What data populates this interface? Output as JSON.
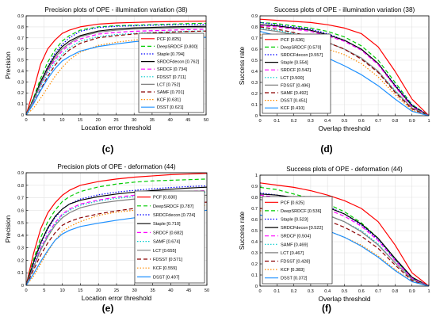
{
  "figure": {
    "panel_labels": [
      "(c)",
      "(d)",
      "(e)",
      "(f)"
    ]
  },
  "chart_data": [
    {
      "type": "line",
      "title": "Precision plots of OPE - illumination variation (38)",
      "xlabel": "Location error threshold",
      "ylabel": "Precision",
      "xlim": [
        0,
        50
      ],
      "ylim": [
        0,
        0.9
      ],
      "xticks": [
        0,
        5,
        10,
        15,
        20,
        25,
        30,
        35,
        40,
        45,
        50
      ],
      "yticks": [
        0,
        0.1,
        0.2,
        0.3,
        0.4,
        0.5,
        0.6,
        0.7,
        0.8,
        0.9
      ],
      "grid": true,
      "legend_position": "bottom-right",
      "x": [
        0,
        2,
        4,
        6,
        8,
        10,
        12,
        15,
        20,
        25,
        30,
        35,
        40,
        45,
        50
      ],
      "series": [
        {
          "name": "PCF [0.825]",
          "color": "#ff0000",
          "dash": "solid",
          "values": [
            0.0,
            0.22,
            0.46,
            0.6,
            0.68,
            0.74,
            0.77,
            0.8,
            0.825,
            0.835,
            0.84,
            0.845,
            0.848,
            0.85,
            0.852
          ]
        },
        {
          "name": "DeepSRDCF [0.800]",
          "color": "#00cc00",
          "dash": "dashed",
          "values": [
            0.0,
            0.15,
            0.33,
            0.48,
            0.59,
            0.67,
            0.72,
            0.77,
            0.8,
            0.81,
            0.815,
            0.82,
            0.825,
            0.83,
            0.832
          ]
        },
        {
          "name": "Staple [0.794]",
          "color": "#0000ff",
          "dash": "dotted",
          "values": [
            0.0,
            0.14,
            0.3,
            0.44,
            0.56,
            0.64,
            0.7,
            0.76,
            0.794,
            0.805,
            0.81,
            0.815,
            0.818,
            0.82,
            0.822
          ]
        },
        {
          "name": "SRDCFdecon [0.762]",
          "color": "#000000",
          "dash": "solid",
          "values": [
            0.0,
            0.14,
            0.3,
            0.43,
            0.54,
            0.62,
            0.67,
            0.72,
            0.762,
            0.78,
            0.79,
            0.795,
            0.8,
            0.803,
            0.805
          ]
        },
        {
          "name": "SRDCF [0.734]",
          "color": "#ff00ff",
          "dash": "dashed",
          "values": [
            0.0,
            0.12,
            0.27,
            0.4,
            0.5,
            0.58,
            0.64,
            0.69,
            0.734,
            0.75,
            0.76,
            0.765,
            0.77,
            0.775,
            0.778
          ]
        },
        {
          "name": "FDSST [0.711]",
          "color": "#00cccc",
          "dash": "dotted",
          "values": [
            0.0,
            0.12,
            0.26,
            0.38,
            0.48,
            0.55,
            0.61,
            0.67,
            0.711,
            0.73,
            0.74,
            0.748,
            0.755,
            0.76,
            0.763
          ]
        },
        {
          "name": "LCT [0.752]",
          "color": "#808080",
          "dash": "solid",
          "values": [
            0.0,
            0.13,
            0.28,
            0.41,
            0.52,
            0.6,
            0.65,
            0.71,
            0.752,
            0.77,
            0.78,
            0.785,
            0.79,
            0.793,
            0.795
          ]
        },
        {
          "name": "SAMF [0.701]",
          "color": "#8b0000",
          "dash": "dashed",
          "values": [
            0.0,
            0.1,
            0.23,
            0.35,
            0.45,
            0.53,
            0.59,
            0.65,
            0.701,
            0.72,
            0.735,
            0.745,
            0.752,
            0.758,
            0.762
          ]
        },
        {
          "name": "KCF [0.631]",
          "color": "#ff8c00",
          "dash": "dotted",
          "values": [
            0.0,
            0.06,
            0.15,
            0.25,
            0.35,
            0.43,
            0.5,
            0.57,
            0.631,
            0.66,
            0.68,
            0.695,
            0.705,
            0.712,
            0.718
          ]
        },
        {
          "name": "DSST [0.621]",
          "color": "#1e90ff",
          "dash": "solid",
          "values": [
            0.0,
            0.1,
            0.22,
            0.33,
            0.42,
            0.49,
            0.53,
            0.58,
            0.621,
            0.645,
            0.665,
            0.68,
            0.69,
            0.7,
            0.705
          ]
        }
      ]
    },
    {
      "type": "line",
      "title": "Success plots of OPE - illumination variation (38)",
      "xlabel": "Overlap threshold",
      "ylabel": "Success rate",
      "xlim": [
        0,
        1
      ],
      "ylim": [
        0,
        0.9
      ],
      "xticks": [
        0,
        0.1,
        0.2,
        0.3,
        0.4,
        0.5,
        0.6,
        0.7,
        0.8,
        0.9,
        1
      ],
      "yticks": [
        0,
        0.1,
        0.2,
        0.3,
        0.4,
        0.5,
        0.6,
        0.7,
        0.8,
        0.9
      ],
      "grid": true,
      "legend_position": "bottom-left",
      "x": [
        0,
        0.1,
        0.2,
        0.3,
        0.4,
        0.5,
        0.6,
        0.7,
        0.8,
        0.9,
        1.0
      ],
      "series": [
        {
          "name": "PCF [0.636]",
          "color": "#ff0000",
          "dash": "solid",
          "values": [
            0.87,
            0.86,
            0.85,
            0.84,
            0.82,
            0.79,
            0.74,
            0.62,
            0.4,
            0.15,
            0.0
          ]
        },
        {
          "name": "DeepSRDCF [0.570]",
          "color": "#00cc00",
          "dash": "dashed",
          "values": [
            0.84,
            0.83,
            0.81,
            0.79,
            0.76,
            0.71,
            0.63,
            0.5,
            0.3,
            0.1,
            0.0
          ]
        },
        {
          "name": "SRDCFdecon [0.557]",
          "color": "#0000ff",
          "dash": "dotted",
          "values": [
            0.84,
            0.82,
            0.8,
            0.78,
            0.74,
            0.68,
            0.6,
            0.47,
            0.28,
            0.1,
            0.0
          ]
        },
        {
          "name": "Staple [0.554]",
          "color": "#000000",
          "dash": "solid",
          "values": [
            0.82,
            0.81,
            0.79,
            0.77,
            0.73,
            0.68,
            0.6,
            0.47,
            0.27,
            0.09,
            0.0
          ]
        },
        {
          "name": "SRDCF [0.542]",
          "color": "#ff00ff",
          "dash": "dashed",
          "values": [
            0.81,
            0.8,
            0.78,
            0.76,
            0.72,
            0.67,
            0.59,
            0.46,
            0.26,
            0.08,
            0.0
          ]
        },
        {
          "name": "LCT [0.500]",
          "color": "#00cccc",
          "dash": "dotted",
          "values": [
            0.79,
            0.77,
            0.74,
            0.7,
            0.66,
            0.6,
            0.52,
            0.4,
            0.23,
            0.07,
            0.0
          ]
        },
        {
          "name": "FDSST [0.496]",
          "color": "#808080",
          "dash": "solid",
          "values": [
            0.78,
            0.76,
            0.73,
            0.7,
            0.66,
            0.6,
            0.52,
            0.4,
            0.22,
            0.07,
            0.0
          ]
        },
        {
          "name": "SAMF [0.492]",
          "color": "#8b0000",
          "dash": "dashed",
          "values": [
            0.8,
            0.78,
            0.75,
            0.71,
            0.66,
            0.6,
            0.51,
            0.39,
            0.21,
            0.06,
            0.0
          ]
        },
        {
          "name": "DSST [0.451]",
          "color": "#ff8c00",
          "dash": "dotted",
          "values": [
            0.73,
            0.71,
            0.68,
            0.64,
            0.6,
            0.55,
            0.47,
            0.35,
            0.19,
            0.05,
            0.0
          ]
        },
        {
          "name": "KCF [0.410]",
          "color": "#1e90ff",
          "dash": "solid",
          "values": [
            0.76,
            0.72,
            0.66,
            0.59,
            0.52,
            0.45,
            0.37,
            0.27,
            0.15,
            0.04,
            0.0
          ]
        }
      ]
    },
    {
      "type": "line",
      "title": "Precision plots of OPE - deformation (44)",
      "xlabel": "Location error threshold",
      "ylabel": "Precision",
      "xlim": [
        0,
        50
      ],
      "ylim": [
        0,
        0.9
      ],
      "xticks": [
        0,
        5,
        10,
        15,
        20,
        25,
        30,
        35,
        40,
        45,
        50
      ],
      "yticks": [
        0,
        0.1,
        0.2,
        0.3,
        0.4,
        0.5,
        0.6,
        0.7,
        0.8,
        0.9
      ],
      "grid": true,
      "legend_position": "bottom-right",
      "x": [
        0,
        2,
        4,
        6,
        8,
        10,
        12,
        15,
        20,
        25,
        30,
        35,
        40,
        45,
        50
      ],
      "series": [
        {
          "name": "PCF [0.830]",
          "color": "#ff0000",
          "dash": "solid",
          "values": [
            0.0,
            0.25,
            0.45,
            0.58,
            0.66,
            0.72,
            0.76,
            0.8,
            0.83,
            0.85,
            0.865,
            0.875,
            0.885,
            0.89,
            0.895
          ]
        },
        {
          "name": "DeepSRDCF [0.787]",
          "color": "#00cc00",
          "dash": "dashed",
          "values": [
            0.0,
            0.2,
            0.38,
            0.51,
            0.6,
            0.67,
            0.71,
            0.75,
            0.787,
            0.81,
            0.825,
            0.835,
            0.84,
            0.845,
            0.85
          ]
        },
        {
          "name": "SRDCFdecon [0.724]",
          "color": "#0000ff",
          "dash": "dotted",
          "values": [
            0.0,
            0.17,
            0.33,
            0.45,
            0.54,
            0.61,
            0.65,
            0.69,
            0.724,
            0.745,
            0.76,
            0.772,
            0.782,
            0.79,
            0.795
          ]
        },
        {
          "name": "Staple [0.710]",
          "color": "#000000",
          "dash": "solid",
          "values": [
            0.0,
            0.18,
            0.34,
            0.46,
            0.55,
            0.61,
            0.65,
            0.68,
            0.71,
            0.73,
            0.745,
            0.758,
            0.768,
            0.778,
            0.785
          ]
        },
        {
          "name": "SRDCF [0.682]",
          "color": "#ff00ff",
          "dash": "dashed",
          "values": [
            0.0,
            0.15,
            0.3,
            0.41,
            0.5,
            0.57,
            0.61,
            0.65,
            0.682,
            0.705,
            0.72,
            0.732,
            0.742,
            0.75,
            0.756
          ]
        },
        {
          "name": "SAMF [0.674]",
          "color": "#00cccc",
          "dash": "dotted",
          "values": [
            0.0,
            0.15,
            0.29,
            0.4,
            0.49,
            0.56,
            0.6,
            0.64,
            0.674,
            0.695,
            0.71,
            0.722,
            0.732,
            0.74,
            0.745
          ]
        },
        {
          "name": "LCT [0.655]",
          "color": "#808080",
          "dash": "solid",
          "values": [
            0.0,
            0.14,
            0.28,
            0.39,
            0.48,
            0.54,
            0.58,
            0.62,
            0.655,
            0.675,
            0.69,
            0.7,
            0.71,
            0.716,
            0.72
          ]
        },
        {
          "name": "FDSST [0.571]",
          "color": "#8b0000",
          "dash": "dashed",
          "values": [
            0.0,
            0.12,
            0.24,
            0.34,
            0.42,
            0.48,
            0.51,
            0.54,
            0.571,
            0.595,
            0.615,
            0.63,
            0.645,
            0.655,
            0.665
          ]
        },
        {
          "name": "KCF [0.559]",
          "color": "#ff8c00",
          "dash": "dotted",
          "values": [
            0.0,
            0.07,
            0.17,
            0.27,
            0.36,
            0.43,
            0.47,
            0.51,
            0.559,
            0.585,
            0.6,
            0.615,
            0.625,
            0.635,
            0.64
          ]
        },
        {
          "name": "DSST [0.497]",
          "color": "#1e90ff",
          "dash": "solid",
          "values": [
            0.0,
            0.09,
            0.19,
            0.28,
            0.36,
            0.41,
            0.44,
            0.47,
            0.497,
            0.52,
            0.54,
            0.555,
            0.57,
            0.585,
            0.6
          ]
        }
      ]
    },
    {
      "type": "line",
      "title": "Success plots of OPE - deformation (44)",
      "xlabel": "Overlap threshold",
      "ylabel": "Success rate",
      "xlim": [
        0,
        1
      ],
      "ylim": [
        0,
        1
      ],
      "xticks": [
        0,
        0.1,
        0.2,
        0.3,
        0.4,
        0.5,
        0.6,
        0.7,
        0.8,
        0.9,
        1
      ],
      "yticks": [
        0,
        0.1,
        0.2,
        0.3,
        0.4,
        0.5,
        0.6,
        0.7,
        0.8,
        0.9,
        1
      ],
      "grid": true,
      "legend_position": "bottom-left",
      "x": [
        0,
        0.1,
        0.2,
        0.3,
        0.4,
        0.5,
        0.6,
        0.7,
        0.8,
        0.9,
        1.0
      ],
      "series": [
        {
          "name": "PCF [0.625]",
          "color": "#ff0000",
          "dash": "solid",
          "values": [
            0.93,
            0.91,
            0.89,
            0.86,
            0.82,
            0.77,
            0.7,
            0.58,
            0.37,
            0.12,
            0.0
          ]
        },
        {
          "name": "DeepSRDCF [0.536]",
          "color": "#00cc00",
          "dash": "dashed",
          "values": [
            0.89,
            0.87,
            0.83,
            0.79,
            0.74,
            0.67,
            0.57,
            0.43,
            0.24,
            0.07,
            0.0
          ]
        },
        {
          "name": "Staple [0.523]",
          "color": "#0000ff",
          "dash": "dotted",
          "values": [
            0.84,
            0.82,
            0.8,
            0.77,
            0.72,
            0.65,
            0.55,
            0.42,
            0.24,
            0.07,
            0.0
          ]
        },
        {
          "name": "SRDCFdecon [0.522]",
          "color": "#000000",
          "dash": "solid",
          "values": [
            0.83,
            0.82,
            0.8,
            0.76,
            0.71,
            0.65,
            0.56,
            0.43,
            0.25,
            0.08,
            0.0
          ]
        },
        {
          "name": "SRDCF [0.504]",
          "color": "#ff00ff",
          "dash": "dashed",
          "values": [
            0.82,
            0.8,
            0.77,
            0.73,
            0.69,
            0.63,
            0.54,
            0.41,
            0.23,
            0.07,
            0.0
          ]
        },
        {
          "name": "SAMF [0.469]",
          "color": "#00cccc",
          "dash": "dotted",
          "values": [
            0.78,
            0.76,
            0.73,
            0.69,
            0.64,
            0.58,
            0.5,
            0.38,
            0.21,
            0.06,
            0.0
          ]
        },
        {
          "name": "LCT [0.467]",
          "color": "#808080",
          "dash": "solid",
          "values": [
            0.78,
            0.76,
            0.73,
            0.69,
            0.64,
            0.58,
            0.49,
            0.37,
            0.21,
            0.06,
            0.0
          ]
        },
        {
          "name": "FDSST [0.428]",
          "color": "#8b0000",
          "dash": "dashed",
          "values": [
            0.7,
            0.69,
            0.66,
            0.63,
            0.59,
            0.53,
            0.45,
            0.34,
            0.19,
            0.05,
            0.0
          ]
        },
        {
          "name": "KCF [0.383]",
          "color": "#ff8c00",
          "dash": "dotted",
          "values": [
            0.68,
            0.65,
            0.61,
            0.56,
            0.5,
            0.44,
            0.37,
            0.27,
            0.15,
            0.04,
            0.0
          ]
        },
        {
          "name": "DSST [0.372]",
          "color": "#1e90ff",
          "dash": "solid",
          "values": [
            0.64,
            0.62,
            0.59,
            0.55,
            0.5,
            0.44,
            0.36,
            0.26,
            0.14,
            0.04,
            0.0
          ]
        }
      ]
    }
  ]
}
